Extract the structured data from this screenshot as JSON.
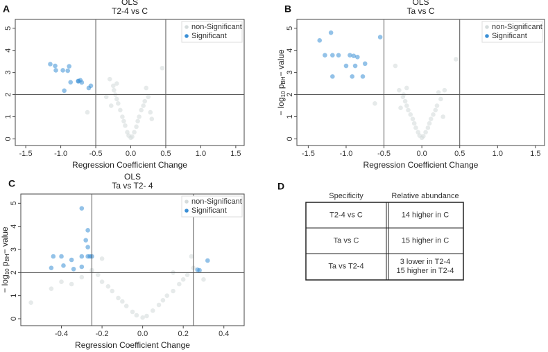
{
  "chart_data": [
    {
      "type": "scatter",
      "panel_label": "A",
      "title": "OLS",
      "subtitle": "T2-4 vs C",
      "xlabel": "Regression Coefficient Change",
      "xlim": [
        -1.65,
        1.62
      ],
      "ylim": [
        -0.3,
        5.4
      ],
      "xticks": [
        -1.5,
        {
          "value": -1,
          "label": "-1.0"
        },
        -0.5,
        {
          "value": 0,
          "label": "0.0"
        },
        0.5,
        {
          "value": 1,
          "label": "1.0"
        },
        1.5
      ],
      "yticks": [
        0,
        1,
        2,
        3,
        4,
        5
      ],
      "vlines": [
        -0.5,
        0.5
      ],
      "hline": 2,
      "legend": "top-right",
      "series": [
        {
          "name": "non-Significant",
          "color": "#d6dcdc",
          "x": [
            -0.3,
            -0.25,
            -0.22,
            -0.2,
            -0.18,
            -0.15,
            -0.12,
            -0.1,
            -0.08,
            -0.05,
            -0.03,
            0,
            0.02,
            0.05,
            0.08,
            0.1,
            0.12,
            0.15,
            0.18,
            0.2,
            0.25,
            -0.28,
            -0.24,
            -0.2,
            0.22,
            0.28,
            -0.62,
            -0.35,
            0.45,
            0.3
          ],
          "values": [
            2.7,
            2.4,
            2.0,
            1.8,
            1.6,
            1.3,
            1.0,
            0.8,
            0.6,
            0.3,
            0.15,
            0.05,
            0.1,
            0.3,
            0.55,
            0.8,
            1.0,
            1.3,
            1.5,
            1.7,
            1.9,
            1.5,
            2.2,
            2.5,
            2.3,
            1.2,
            1.2,
            1.9,
            3.2,
            0.9
          ]
        },
        {
          "name": "Significant",
          "color": "#3a8fd6",
          "x": [
            -1.15,
            -1.08,
            -1.07,
            -0.97,
            -0.88,
            -0.9,
            -0.86,
            -0.95,
            -0.75,
            -0.72,
            -0.7,
            -0.6,
            -0.57,
            -0.75
          ],
          "values": [
            3.38,
            3.3,
            3.1,
            3.1,
            3.28,
            3.08,
            2.56,
            2.18,
            2.6,
            2.65,
            2.55,
            2.3,
            2.4,
            2.62
          ]
        }
      ]
    },
    {
      "type": "scatter",
      "panel_label": "B",
      "title": "OLS",
      "subtitle": "Ta vs C",
      "xlabel": "Regression Coefficient Change",
      "ylabel": [
        "− log",
        "10",
        " p",
        "BH",
        "− value"
      ],
      "xlim": [
        -1.65,
        1.62
      ],
      "ylim": [
        -0.3,
        5.4
      ],
      "xticks": [
        -1.5,
        {
          "value": -1,
          "label": "-1.0"
        },
        -0.5,
        {
          "value": 0,
          "label": "0.0"
        },
        0.5,
        {
          "value": 1,
          "label": "1.0"
        },
        1.5
      ],
      "yticks": [
        0,
        1,
        2,
        3,
        4,
        5
      ],
      "vlines": [
        -0.5,
        0.5
      ],
      "hline": 2,
      "legend": "top-right",
      "series": [
        {
          "name": "non-Significant",
          "color": "#d6dcdc",
          "x": [
            -0.3,
            -0.25,
            -0.22,
            -0.2,
            -0.18,
            -0.15,
            -0.12,
            -0.1,
            -0.08,
            -0.05,
            -0.03,
            0,
            0.02,
            0.05,
            0.08,
            0.1,
            0.12,
            0.15,
            0.18,
            0.2,
            0.25,
            -0.28,
            -0.24,
            -0.2,
            0.22,
            0.28,
            -0.62,
            -0.35,
            0.45,
            0.3
          ],
          "values": [
            2.2,
            1.9,
            1.7,
            1.5,
            1.3,
            1.1,
            0.9,
            0.7,
            0.5,
            0.3,
            0.15,
            0.05,
            0.12,
            0.3,
            0.5,
            0.7,
            0.9,
            1.1,
            1.3,
            1.5,
            1.8,
            1.4,
            2.0,
            2.3,
            2.1,
            1.0,
            1.6,
            3.3,
            3.6,
            2.2
          ]
        },
        {
          "name": "Significant",
          "color": "#3a8fd6",
          "x": [
            -1.35,
            -1.2,
            -0.55,
            -1.28,
            -1.18,
            -1.1,
            -0.95,
            -0.9,
            -0.85,
            -0.88,
            -1.0,
            -1.18,
            -0.92,
            -0.78,
            -0.75
          ],
          "values": [
            4.45,
            4.8,
            4.6,
            3.78,
            3.78,
            3.78,
            3.78,
            3.75,
            3.7,
            3.3,
            3.3,
            2.82,
            2.82,
            2.82,
            3.4
          ]
        }
      ]
    },
    {
      "type": "scatter",
      "panel_label": "C",
      "title": "OLS",
      "subtitle": "Ta vs T2- 4",
      "xlabel": "Regression Coefficient Change",
      "ylabel": [
        "− log",
        "10",
        " p",
        "BH",
        "− value"
      ],
      "xlim": [
        -0.6,
        0.5
      ],
      "ylim": [
        -0.3,
        5.4
      ],
      "xticks": [
        -0.4,
        -0.2,
        {
          "value": 0,
          "label": "0.0"
        },
        0.2,
        0.4
      ],
      "yticks": [
        0,
        1,
        2,
        3,
        4,
        5
      ],
      "vlines": [
        -0.25,
        0.25
      ],
      "hline": 2,
      "legend": "top-right",
      "series": [
        {
          "name": "non-Significant",
          "color": "#d6dcdc",
          "x": [
            -0.55,
            -0.45,
            -0.4,
            -0.35,
            -0.3,
            -0.25,
            -0.22,
            -0.2,
            -0.17,
            -0.15,
            -0.12,
            -0.1,
            -0.08,
            -0.05,
            -0.03,
            0,
            0.02,
            0.05,
            0.08,
            0.1,
            0.12,
            0.15,
            0.18,
            0.2,
            0.22,
            0.25,
            -0.2,
            0.15,
            0.24,
            0.3
          ],
          "values": [
            0.7,
            1.3,
            1.6,
            1.5,
            1.8,
            2.1,
            1.9,
            1.6,
            1.4,
            1.2,
            0.9,
            0.75,
            0.55,
            0.3,
            0.15,
            0.05,
            0.12,
            0.35,
            0.6,
            0.8,
            1.0,
            1.2,
            1.5,
            1.7,
            1.9,
            2.2,
            2.6,
            2.0,
            2.7,
            1.7
          ]
        },
        {
          "name": "Significant",
          "color": "#3a8fd6",
          "x": [
            -0.45,
            -0.44,
            -0.4,
            -0.39,
            -0.35,
            -0.34,
            -0.3,
            -0.3,
            -0.3,
            -0.28,
            -0.27,
            -0.27,
            -0.26,
            -0.25,
            -0.27,
            0.27,
            0.28,
            0.32
          ],
          "values": [
            2.2,
            2.7,
            2.7,
            2.3,
            2.55,
            2.15,
            2.25,
            2.7,
            4.78,
            3.4,
            3.83,
            2.7,
            2.7,
            2.7,
            3.1,
            2.12,
            2.1,
            2.52
          ]
        }
      ]
    }
  ],
  "table": {
    "panel_label": "D",
    "header": [
      "Specificity",
      "Relative abundance"
    ],
    "rows": [
      [
        "T2-4 vs C",
        [
          "14 higher in C"
        ]
      ],
      [
        "Ta vs C",
        [
          "15 higher in C"
        ]
      ],
      [
        "Ta vs T2-4",
        [
          "3 lower in T2-4",
          "15 higher in T2-4"
        ]
      ]
    ]
  }
}
